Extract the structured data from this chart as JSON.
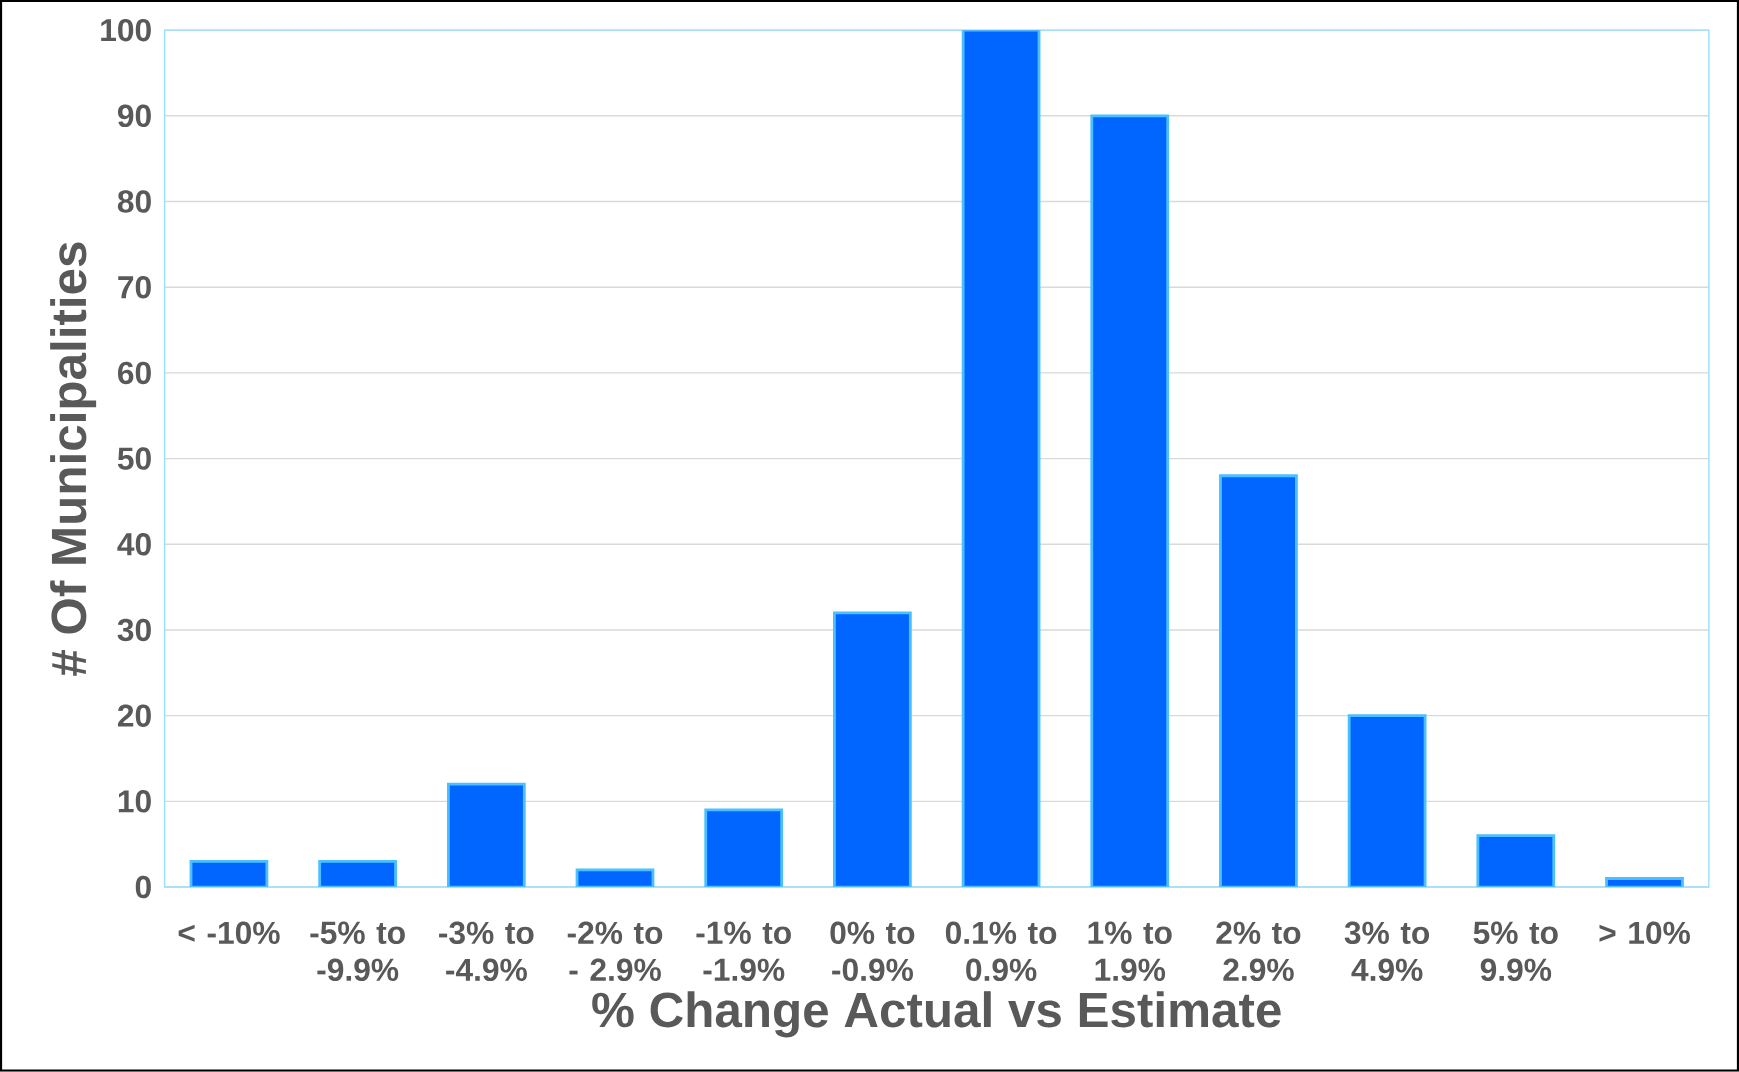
{
  "chart_data": {
    "type": "bar",
    "xlabel": "% Change Actual vs Estimate",
    "ylabel": "# Of Municipalities",
    "categories": [
      "< -10%",
      "-5% to -9.9%",
      "-3% to -4.9%",
      "-2% to - 2.9%",
      "-1% to -1.9%",
      "0% to -0.9%",
      "0.1% to 0.9%",
      "1% to 1.9%",
      "2% to 2.9%",
      "3% to 4.9%",
      "5% to 9.9%",
      "> 10%"
    ],
    "values": [
      3,
      3,
      12,
      2,
      9,
      32,
      100,
      90,
      48,
      20,
      6,
      1
    ],
    "color": "#0066ff",
    "ylim": [
      0,
      100
    ],
    "yticks": [
      0,
      10,
      20,
      30,
      40,
      50,
      60,
      70,
      80,
      90,
      100
    ],
    "grid": "y"
  }
}
